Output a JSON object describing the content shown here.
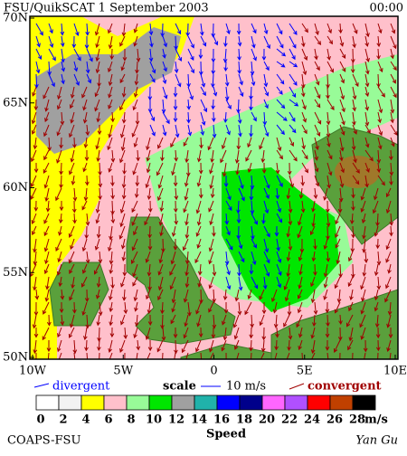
{
  "map": {
    "title": "FSU/QuikSCAT  1 September 2003",
    "time": "00:00",
    "lat_ticks": [
      {
        "value": 70,
        "label": "70N"
      },
      {
        "value": 65,
        "label": "65N"
      },
      {
        "value": 60,
        "label": "60N"
      },
      {
        "value": 55,
        "label": "55N"
      },
      {
        "value": 50,
        "label": "50N"
      }
    ],
    "lon_ticks": [
      {
        "value": -10,
        "label": "10W"
      },
      {
        "value": -5,
        "label": "5W"
      },
      {
        "value": 0,
        "label": "0"
      },
      {
        "value": 5,
        "label": "5E"
      },
      {
        "value": 10,
        "label": "10E"
      }
    ],
    "legend": {
      "divergent": "divergent",
      "scale": "scale",
      "scale_value": "10 m/s",
      "convergent": "convergent"
    },
    "colorbar": {
      "labels": [
        0,
        2,
        4,
        6,
        8,
        10,
        12,
        14,
        16,
        18,
        20,
        22,
        24,
        26,
        28
      ],
      "colors": [
        "#ffffff",
        "#f2f2f2",
        "#ffff00",
        "#ffc0cb",
        "#98fb98",
        "#00e600",
        "#a0a0a0",
        "#20b2aa",
        "#0000ff",
        "#00008b",
        "#ff66ff",
        "#b050ff",
        "#ff0000",
        "#c04000",
        "#000000"
      ],
      "unit": "m/s",
      "title": "Speed"
    },
    "credit": "COAPS-FSU",
    "author": "Yan Gu"
  }
}
